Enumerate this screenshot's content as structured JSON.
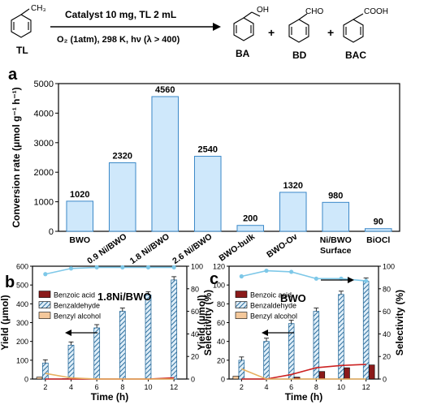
{
  "scheme": {
    "reactant_label": "TL",
    "conditions_top": "Catalyst 10 mg, TL 2 mL",
    "conditions_bottom": "O₂ (1atm), 298 K, hν (λ > 400)",
    "plus": "+",
    "products": [
      {
        "label": "BA",
        "group": "OH"
      },
      {
        "label": "BD",
        "group": "CHO"
      },
      {
        "label": "BAC",
        "group": "COOH"
      }
    ],
    "methyl_group": "CH₃"
  },
  "colors": {
    "bar_fill": "#cfe8fb",
    "bar_stroke": "#3a88c8",
    "benzoic_acid": "#8b1a1a",
    "benzaldehyde": "#2e6f9e",
    "benzyl_alcohol": "#f4c89b",
    "selectivity_line": "#7ec8e8",
    "acid_line": "#cc2222",
    "alcohol_line": "#e8b060"
  },
  "chart_data": [
    {
      "panel": "a",
      "type": "bar",
      "ylabel": "Conversion rate (μmol g⁻¹ h⁻¹)",
      "ylim": [
        0,
        5000
      ],
      "yticks": [
        "0",
        "1000",
        "2000",
        "3000",
        "4000",
        "5000"
      ],
      "categories": [
        "BWO",
        "0.9 Ni/BWO",
        "1.8 Ni/BWO",
        "2.6 Ni/BWO",
        "BWO-bulk",
        "BWO-Ov",
        "Ni/BWO\nSurface",
        "BiOCl"
      ],
      "values": [
        1020,
        2320,
        4560,
        2540,
        200,
        1320,
        980,
        90
      ],
      "value_labels": [
        "1020",
        "2320",
        "4560",
        "2540",
        "200",
        "1320",
        "980",
        "90"
      ]
    },
    {
      "panel": "b",
      "type": "bar",
      "title": "1.8Ni/BWO",
      "xlabel": "Time (h)",
      "ylabel": "Yield (μmol)",
      "y2label": "Selectivity (%)",
      "ylim": [
        0,
        600
      ],
      "y2lim": [
        0,
        100
      ],
      "yticks": [
        "0",
        "100",
        "200",
        "300",
        "400",
        "500",
        "600"
      ],
      "y2ticks": [
        "0",
        "20",
        "40",
        "60",
        "80",
        "100"
      ],
      "categories": [
        "2",
        "4",
        "6",
        "8",
        "10",
        "12"
      ],
      "legend": [
        "Benzoic acid",
        "Benzaldehyde",
        "Benzyl alcohol"
      ],
      "series": [
        {
          "name": "Benzoic acid",
          "values": [
            0,
            0,
            0,
            0,
            0,
            0
          ]
        },
        {
          "name": "Benzaldehyde",
          "values": [
            85,
            180,
            272,
            360,
            447,
            527
          ]
        },
        {
          "name": "Benzyl alcohol",
          "values": [
            10,
            2,
            0,
            0,
            0,
            0
          ]
        }
      ],
      "selectivity": {
        "benzaldehyde": [
          93,
          98,
          99,
          99,
          99,
          99
        ],
        "benzoic_acid": [
          0,
          0,
          0,
          0,
          0,
          1
        ],
        "benzyl_alcohol": [
          5,
          1,
          0,
          0,
          0,
          0
        ]
      }
    },
    {
      "panel": "c",
      "type": "bar",
      "title": "BWO",
      "xlabel": "Time (h)",
      "ylabel": "Yield (μmol)",
      "y2label": "Selectivity (%)",
      "ylim": [
        0,
        120
      ],
      "y2lim": [
        0,
        100
      ],
      "yticks": [
        "0",
        "20",
        "40",
        "60",
        "80",
        "100",
        "120"
      ],
      "y2ticks": [
        "0",
        "20",
        "40",
        "60",
        "80",
        "100"
      ],
      "categories": [
        "2",
        "4",
        "6",
        "8",
        "10",
        "12"
      ],
      "legend": [
        "Benzoic acid",
        "Benzaldehyde",
        "Benzyl alcohol"
      ],
      "series": [
        {
          "name": "Benzoic acid",
          "values": [
            0,
            0,
            2,
            8,
            12,
            15
          ]
        },
        {
          "name": "Benzaldehyde",
          "values": [
            20,
            40,
            59,
            72,
            90,
            104
          ]
        },
        {
          "name": "Benzyl alcohol",
          "values": [
            3,
            0,
            0,
            0,
            0,
            0
          ]
        }
      ],
      "selectivity": {
        "benzaldehyde": [
          91,
          96,
          95,
          89,
          89,
          87
        ],
        "benzoic_acid": [
          0,
          0,
          4,
          10,
          12,
          13
        ],
        "benzyl_alcohol": [
          9,
          0,
          0,
          0,
          0,
          0
        ]
      }
    }
  ],
  "panel_labels": {
    "a": "a",
    "b": "b",
    "c": "c"
  }
}
